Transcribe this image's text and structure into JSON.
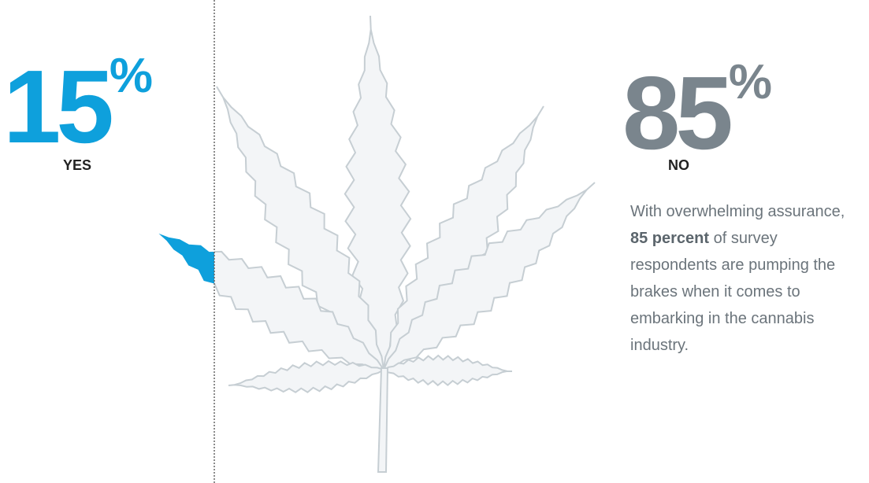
{
  "yes": {
    "number": "15",
    "unit": "%",
    "label": "YES"
  },
  "no": {
    "number": "85",
    "unit": "%",
    "label": "NO"
  },
  "description": {
    "before": "With overwhelming assurance, ",
    "emphasis": "85 percent",
    "after": " of survey respondents are pumping the brakes when it comes to embarking in the cannabis industry."
  }
}
